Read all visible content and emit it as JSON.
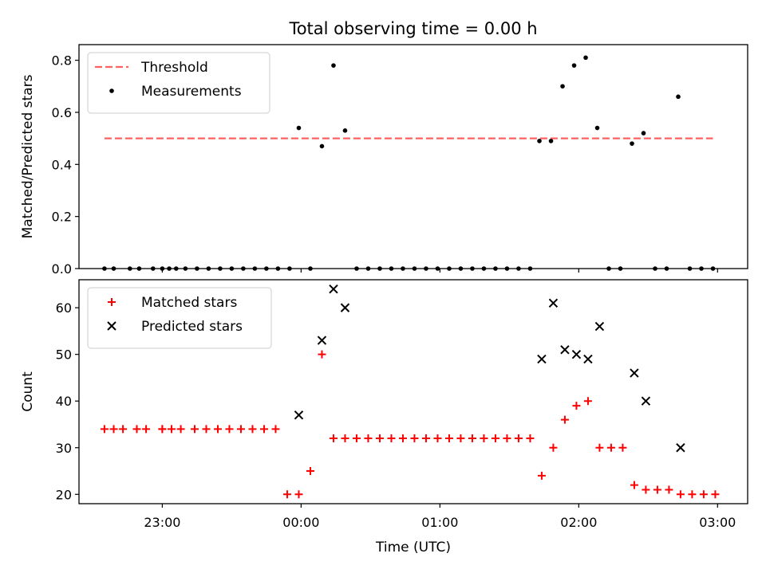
{
  "chart_data": {
    "type": "scatter",
    "title": "Total observing time = 0.00 h",
    "xlabel": "Time (UTC)",
    "x_ticks": [
      "23:00",
      "00:00",
      "01:00",
      "02:00",
      "03:00"
    ],
    "x_range": [
      "22:24",
      "03:13"
    ],
    "panels": [
      {
        "ylabel": "Matched/Predicted stars",
        "ylim": [
          0,
          0.86
        ],
        "yticks": [
          "0.0",
          "0.2",
          "0.4",
          "0.6",
          "0.8"
        ],
        "legend_position": "top-left",
        "series": [
          {
            "name": "Threshold",
            "style": "dashed-line",
            "color": "#ff6060",
            "x": [
              "22:35",
              "02:58"
            ],
            "y": [
              0.5,
              0.5
            ]
          },
          {
            "name": "Measurements",
            "style": "dot",
            "color": "#000000",
            "x": [
              "22:35",
              "22:39",
              "22:46",
              "22:50",
              "22:56",
              "23:00",
              "23:03",
              "23:06",
              "23:10",
              "23:15",
              "23:20",
              "23:25",
              "23:30",
              "23:35",
              "23:40",
              "23:45",
              "23:50",
              "23:55",
              "23:59",
              "00:04",
              "00:09",
              "00:14",
              "00:19",
              "00:24",
              "00:29",
              "00:34",
              "00:39",
              "00:44",
              "00:49",
              "00:54",
              "00:59",
              "01:04",
              "01:09",
              "01:14",
              "01:19",
              "01:24",
              "01:29",
              "01:34",
              "01:39",
              "01:43",
              "01:48",
              "01:53",
              "01:58",
              "02:03",
              "02:08",
              "02:13",
              "02:18",
              "02:23",
              "02:28",
              "02:33",
              "02:38",
              "02:43",
              "02:48",
              "02:53",
              "02:58"
            ],
            "y": [
              0,
              0,
              0,
              0,
              0,
              0,
              0,
              0,
              0,
              0,
              0,
              0,
              0,
              0,
              0,
              0,
              0,
              0,
              0.54,
              0,
              0.47,
              0.78,
              0.53,
              0,
              0,
              0,
              0,
              0,
              0,
              0,
              0,
              0,
              0,
              0,
              0,
              0,
              0,
              0,
              0,
              0.49,
              0.49,
              0.7,
              0.78,
              0.81,
              0.54,
              0,
              0,
              0.48,
              0.52,
              0,
              0,
              0.66,
              0,
              0,
              0
            ]
          }
        ]
      },
      {
        "ylabel": "Count",
        "ylim": [
          18,
          66
        ],
        "yticks": [
          "20",
          "30",
          "40",
          "50",
          "60"
        ],
        "legend_position": "top-left",
        "series": [
          {
            "name": "Matched stars",
            "style": "plus",
            "color": "#ff0000",
            "x": [
              "22:35",
              "22:39",
              "22:43",
              "22:49",
              "22:53",
              "23:00",
              "23:00",
              "23:04",
              "23:08",
              "23:14",
              "23:19",
              "23:24",
              "23:29",
              "23:34",
              "23:39",
              "23:44",
              "23:49",
              "23:54",
              "23:59",
              "00:04",
              "00:09",
              "00:14",
              "00:19",
              "00:24",
              "00:29",
              "00:34",
              "00:39",
              "00:44",
              "00:49",
              "00:54",
              "00:59",
              "01:04",
              "01:09",
              "01:14",
              "01:19",
              "01:24",
              "01:29",
              "01:34",
              "01:39",
              "01:44",
              "01:49",
              "01:54",
              "01:59",
              "02:04",
              "02:09",
              "02:14",
              "02:19",
              "02:24",
              "02:29",
              "02:34",
              "02:39",
              "02:44",
              "02:49",
              "02:54",
              "02:59"
            ],
            "y": [
              34,
              34,
              34,
              34,
              34,
              34,
              34,
              34,
              34,
              34,
              34,
              34,
              34,
              34,
              34,
              34,
              34,
              20,
              20,
              25,
              50,
              32,
              32,
              32,
              32,
              32,
              32,
              32,
              32,
              32,
              32,
              32,
              32,
              32,
              32,
              32,
              32,
              32,
              32,
              24,
              30,
              36,
              39,
              40,
              30,
              30,
              30,
              22,
              21,
              21,
              21,
              20,
              20,
              20,
              20
            ]
          },
          {
            "name": "Predicted stars",
            "style": "x",
            "color": "#000000",
            "x": [
              "23:59",
              "00:09",
              "00:14",
              "00:19",
              "01:44",
              "01:49",
              "01:54",
              "01:59",
              "02:04",
              "02:09",
              "02:24",
              "02:29",
              "02:44"
            ],
            "y": [
              37,
              53,
              64,
              60,
              49,
              61,
              51,
              50,
              49,
              56,
              46,
              40,
              30
            ]
          }
        ]
      }
    ]
  }
}
